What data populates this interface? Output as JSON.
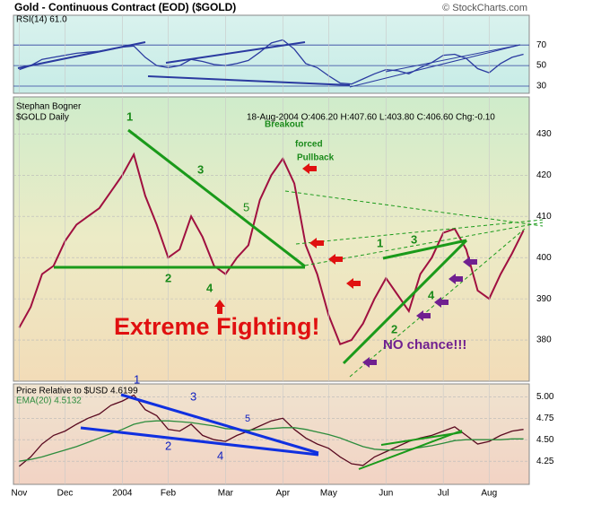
{
  "header": {
    "title": "Gold - Continuous Contract (EOD) ($GOLD)",
    "source": "© StockCharts.com"
  },
  "chart_data": [
    {
      "type": "line",
      "ylim": [
        23,
        99
      ],
      "yticks": [
        30,
        50,
        70
      ],
      "grid": true,
      "series": [
        {
          "name": "RSI(14) 61.0",
          "color": "#2a3aa0",
          "values": [
            46,
            50,
            56,
            58,
            60,
            62,
            63,
            64,
            66,
            68,
            69,
            58,
            50,
            48,
            50,
            56,
            54,
            51,
            50,
            52,
            55,
            63,
            72,
            75,
            66,
            52,
            48,
            40,
            33,
            32,
            37,
            42,
            46,
            45,
            42,
            48,
            53,
            60,
            61,
            57,
            47,
            43,
            52,
            58,
            61
          ]
        }
      ]
    },
    {
      "type": "line",
      "ylim": [
        370,
        439
      ],
      "yticks": [
        380,
        390,
        400,
        410,
        420,
        430
      ],
      "grid": true,
      "author": "Stephan Bogner",
      "info": "18-Aug-2004 O:406.20 H:407.60 L:403.80 C:406.60 Chg:-0.10",
      "series": [
        {
          "name": "$GOLD Daily",
          "color": "#a01040",
          "values": [
            383,
            388,
            396,
            398,
            404,
            408,
            410,
            412,
            416,
            420,
            425,
            415,
            408,
            400,
            402,
            410,
            405,
            398,
            396,
            400,
            403,
            414,
            420,
            424,
            418,
            403,
            396,
            386,
            379,
            380,
            384,
            390,
            395,
            391,
            387,
            396,
            400,
            406,
            407,
            402,
            392,
            390,
            396,
            401,
            406.6
          ]
        }
      ],
      "annotations": [
        "1",
        "Breakout",
        "forced",
        "Pullback",
        "3",
        "5",
        "2",
        "4",
        "1",
        "3",
        "4",
        "2",
        "Extreme Fighting!",
        "NO chance!!!"
      ]
    },
    {
      "type": "line",
      "ylim": [
        3.98,
        5.15
      ],
      "yticks": [
        {
          "value": 5,
          "label": "5.00"
        },
        4.75,
        {
          "value": 4.5,
          "label": "4.50"
        },
        4.25
      ],
      "grid": true,
      "categories": [
        "Nov",
        null,
        null,
        null,
        "Dec",
        null,
        null,
        null,
        null,
        "2004",
        null,
        null,
        null,
        "Feb",
        null,
        null,
        null,
        null,
        "Mar",
        null,
        null,
        null,
        null,
        "Apr",
        null,
        null,
        null,
        "May",
        null,
        null,
        null,
        null,
        "Jun",
        null,
        null,
        null,
        null,
        "Jul",
        null,
        null,
        null,
        "Aug",
        null,
        null,
        null
      ],
      "series": [
        {
          "name": "Price Relative to $USD 4.6199",
          "color": "#5a0a20",
          "values": [
            4.19,
            4.3,
            4.45,
            4.55,
            4.6,
            4.68,
            4.75,
            4.8,
            4.9,
            4.95,
            5.02,
            4.85,
            4.78,
            4.62,
            4.6,
            4.68,
            4.55,
            4.5,
            4.48,
            4.55,
            4.6,
            4.66,
            4.72,
            4.75,
            4.62,
            4.52,
            4.45,
            4.4,
            4.3,
            4.22,
            4.2,
            4.3,
            4.36,
            4.42,
            4.48,
            4.52,
            4.55,
            4.6,
            4.65,
            4.55,
            4.45,
            4.48,
            4.55,
            4.6,
            4.62
          ]
        },
        {
          "name": "EMA(20) 4.5132",
          "color": "#2c8c3c",
          "values": [
            4.25,
            4.27,
            4.3,
            4.34,
            4.38,
            4.42,
            4.47,
            4.52,
            4.57,
            4.62,
            4.68,
            4.71,
            4.72,
            4.72,
            4.71,
            4.7,
            4.68,
            4.66,
            4.63,
            4.62,
            4.61,
            4.62,
            4.63,
            4.64,
            4.64,
            4.62,
            4.59,
            4.56,
            4.52,
            4.47,
            4.42,
            4.39,
            4.38,
            4.38,
            4.39,
            4.41,
            4.43,
            4.46,
            4.49,
            4.5,
            4.5,
            4.5,
            4.5,
            4.51,
            4.51
          ]
        }
      ],
      "annotations": [
        "1",
        "3",
        "5",
        "2",
        "4"
      ]
    }
  ]
}
